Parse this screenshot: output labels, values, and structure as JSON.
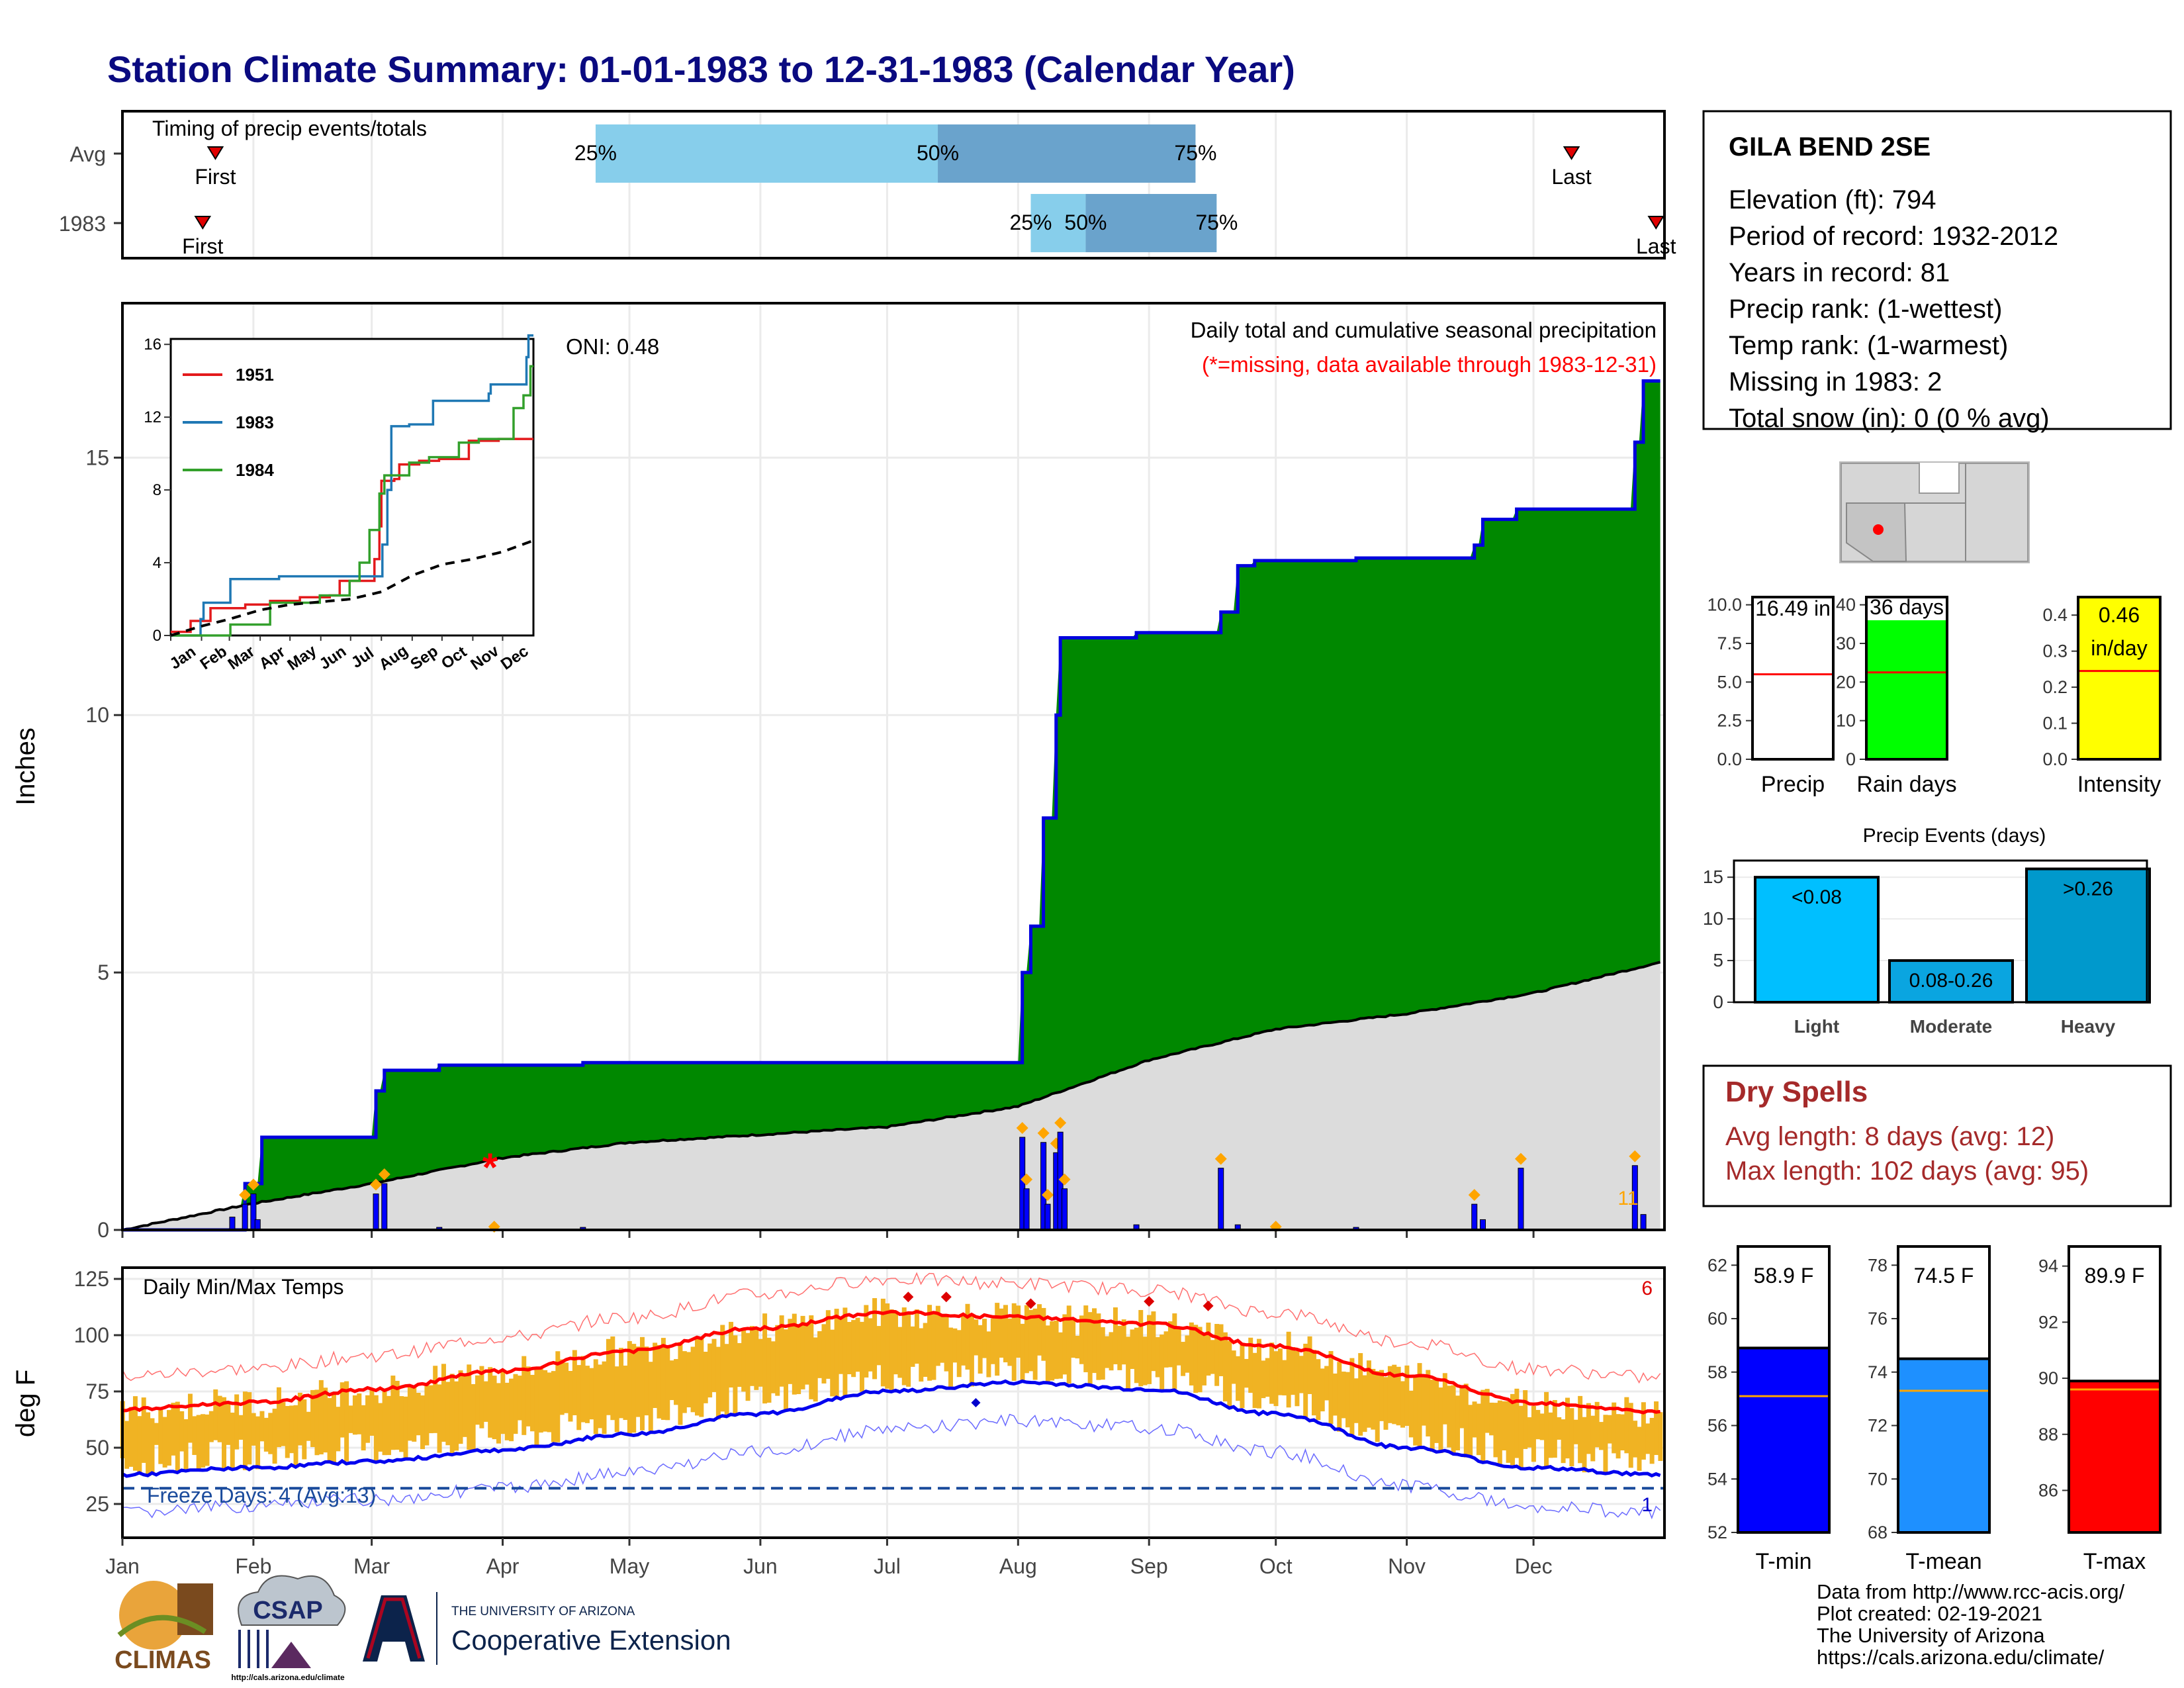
{
  "title": "Station Climate Summary: 01-01-1983 to 12-31-1983 (Calendar Year)",
  "timing": {
    "label": "Timing of precip events/totals",
    "rows": [
      {
        "name": "Avg",
        "first": "First",
        "last": "Last",
        "p25": "25%",
        "p50": "50%",
        "p75": "75%",
        "first_doy": 22,
        "p25_doy": 112,
        "p50_doy": 193,
        "p75_doy": 254,
        "last_doy": 343
      },
      {
        "name": "1983",
        "first": "First",
        "last": "Last",
        "p25": "25%",
        "p50": "50%",
        "p75": "75%",
        "first_doy": 19,
        "p25_doy": 215,
        "p50_doy": 228,
        "p75_doy": 259,
        "last_doy": 363
      }
    ]
  },
  "main": {
    "ylabel": "Inches",
    "yticks": [
      "0",
      "5",
      "10",
      "15"
    ],
    "oni": "ONI: 0.48",
    "subtitle": "Daily total and cumulative seasonal precipitation",
    "missing_note": "(*=missing, data available through 1983-12-31)",
    "extreme_count": "11"
  },
  "inset": {
    "yticks": [
      "0",
      "4",
      "8",
      "12",
      "16"
    ],
    "months": [
      "Jan",
      "Feb",
      "Mar",
      "Apr",
      "May",
      "Jun",
      "Jul",
      "Aug",
      "Sep",
      "Oct",
      "Nov",
      "Dec"
    ],
    "legend": [
      "1951",
      "1983",
      "1984"
    ]
  },
  "temps": {
    "ylabel": "deg F",
    "label": "Daily Min/Max Temps",
    "yticks": [
      "25",
      "50",
      "75",
      "100",
      "125"
    ],
    "freeze": "Freeze Days: 4 (Avg:13)",
    "hot_count": "6",
    "cold_count": "1"
  },
  "months": [
    "Jan",
    "Feb",
    "Mar",
    "Apr",
    "May",
    "Jun",
    "Jul",
    "Aug",
    "Sep",
    "Oct",
    "Nov",
    "Dec"
  ],
  "station": {
    "name": "GILA BEND 2SE",
    "lines": [
      "Elevation (ft): 794",
      "Period of record: 1932-2012",
      "Years in record: 81",
      "Precip rank:  (1-wettest)",
      "Temp rank:  (1-warmest)",
      "Missing in 1983: 2",
      "Total snow (in): 0 (0 % avg)"
    ]
  },
  "gauges": {
    "precip": {
      "label": "Precip",
      "value_text": "16.49 in",
      "value": 16.49,
      "avg": 5.5,
      "yticks": [
        "0.0",
        "2.5",
        "5.0",
        "7.5",
        "10.0"
      ],
      "ymax": 10.5,
      "color": "#ffffff"
    },
    "raindays": {
      "label": "Rain days",
      "value_text": "36 days",
      "value": 36,
      "avg": 22.5,
      "yticks": [
        "0",
        "10",
        "20",
        "30",
        "40"
      ],
      "ymax": 42,
      "color": "#00ff00"
    },
    "intensity": {
      "label": "Intensity",
      "value_text": "0.46",
      "value_text2": "in/day",
      "value": 0.46,
      "avg": 0.245,
      "yticks": [
        "0.0",
        "0.1",
        "0.2",
        "0.3",
        "0.4"
      ],
      "ymax": 0.45,
      "color": "#ffff00"
    }
  },
  "events": {
    "title": "Precip Events (days)",
    "yticks": [
      "0",
      "5",
      "10",
      "15"
    ],
    "categories": [
      "Light",
      "Moderate",
      "Heavy"
    ],
    "bar_labels": [
      "<0.08",
      "0.08-0.26",
      ">0.26"
    ],
    "values": [
      15,
      5,
      16
    ],
    "colors": [
      "#00bfff",
      "#0aa5e0",
      "#0099cc"
    ]
  },
  "dry": {
    "title": "Dry Spells",
    "avg": "Avg length: 8 days (avg: 12)",
    "max": "Max length: 102 days (avg: 95)"
  },
  "tgauges": [
    {
      "label": "T-min",
      "value_text": "58.9 F",
      "value": 58.9,
      "avg": 57.1,
      "min": 52,
      "max": 62.7,
      "ticks": [
        52,
        54,
        56,
        58,
        60,
        62
      ],
      "color": "#0000ff"
    },
    {
      "label": "T-mean",
      "value_text": "74.5 F",
      "value": 74.5,
      "avg": 73.3,
      "min": 68,
      "max": 78.7,
      "ticks": [
        68,
        70,
        72,
        74,
        76,
        78
      ],
      "color": "#1e90ff"
    },
    {
      "label": "T-max",
      "value_text": "89.9 F",
      "value": 89.9,
      "avg": 89.6,
      "min": 84.5,
      "max": 94.7,
      "ticks": [
        86,
        88,
        90,
        92,
        94
      ],
      "color": "#ff0000"
    }
  ],
  "logos": {
    "climas": "CLIMAS",
    "csap": "CSAP",
    "csap_url": "http://cals.arizona.edu/climate",
    "ua_small": "THE UNIVERSITY OF ARIZONA",
    "ua_big": "Cooperative Extension"
  },
  "footer": [
    "Data from http://www.rcc-acis.org/",
    "Plot created: 02-19-2021",
    "The University of Arizona",
    "https://cals.arizona.edu/climate/"
  ],
  "chart_data": [
    {
      "type": "bar",
      "title": "Timing of precip events/totals",
      "categories": [
        "Avg",
        "1983"
      ],
      "series": [
        {
          "name": "25%",
          "values": [
            112,
            215
          ]
        },
        {
          "name": "50%",
          "values": [
            193,
            228
          ]
        },
        {
          "name": "75%",
          "values": [
            254,
            259
          ]
        }
      ]
    },
    {
      "type": "area",
      "title": "Daily total and cumulative seasonal precipitation",
      "ylabel": "Inches",
      "ylim": [
        0,
        18
      ],
      "x": [
        "Jan",
        "Feb",
        "Mar",
        "Apr",
        "May",
        "Jun",
        "Jul",
        "Aug",
        "Sep",
        "Oct",
        "Nov",
        "Dec"
      ],
      "cumulative_1983_steps": [
        [
          29,
          0.9
        ],
        [
          33,
          1.8
        ],
        [
          60,
          2.7
        ],
        [
          62,
          3.1
        ],
        [
          75,
          3.2
        ],
        [
          109,
          3.25
        ],
        [
          213,
          5.0
        ],
        [
          215,
          5.9
        ],
        [
          218,
          8.0
        ],
        [
          221,
          10.0
        ],
        [
          222,
          11.5
        ],
        [
          240,
          11.6
        ],
        [
          260,
          12.0
        ],
        [
          264,
          12.9
        ],
        [
          268,
          13.0
        ],
        [
          292,
          13.05
        ],
        [
          320,
          13.3
        ],
        [
          322,
          13.8
        ],
        [
          330,
          14.0
        ],
        [
          358,
          15.3
        ],
        [
          360,
          16.49
        ]
      ],
      "average_cumulative": [
        [
          0,
          0.0
        ],
        [
          30,
          0.5
        ],
        [
          59,
          0.9
        ],
        [
          90,
          1.4
        ],
        [
          120,
          1.7
        ],
        [
          151,
          1.85
        ],
        [
          181,
          2.0
        ],
        [
          212,
          2.4
        ],
        [
          243,
          3.3
        ],
        [
          273,
          3.9
        ],
        [
          304,
          4.2
        ],
        [
          334,
          4.6
        ],
        [
          364,
          5.2
        ]
      ],
      "daily_bars": [
        [
          26,
          0.25
        ],
        [
          29,
          0.5
        ],
        [
          31,
          0.7
        ],
        [
          32,
          0.2
        ],
        [
          60,
          0.7
        ],
        [
          62,
          0.9
        ],
        [
          75,
          0.05
        ],
        [
          109,
          0.05
        ],
        [
          213,
          1.8
        ],
        [
          214,
          0.8
        ],
        [
          218,
          1.7
        ],
        [
          219,
          0.5
        ],
        [
          221,
          1.5
        ],
        [
          222,
          1.9
        ],
        [
          223,
          0.8
        ],
        [
          240,
          0.1
        ],
        [
          260,
          1.2
        ],
        [
          264,
          0.1
        ],
        [
          292,
          0.05
        ],
        [
          320,
          0.5
        ],
        [
          322,
          0.2
        ],
        [
          331,
          1.2
        ],
        [
          358,
          1.25
        ],
        [
          360,
          0.3
        ]
      ]
    },
    {
      "type": "line",
      "title": "Daily Min/Max Temps",
      "ylabel": "deg F",
      "ylim": [
        10,
        130
      ],
      "series": [
        {
          "name": "avg max",
          "x": [
            0,
            30,
            60,
            90,
            120,
            150,
            181,
            212,
            243,
            273,
            304,
            334,
            364
          ],
          "values": [
            67,
            70,
            76,
            84,
            93,
            103,
            110,
            108,
            105,
            95,
            82,
            70,
            66
          ]
        },
        {
          "name": "avg min",
          "x": [
            0,
            30,
            60,
            90,
            120,
            150,
            181,
            212,
            243,
            273,
            304,
            334,
            364
          ],
          "values": [
            38,
            41,
            44,
            49,
            56,
            65,
            75,
            79,
            76,
            65,
            50,
            41,
            38
          ]
        }
      ]
    },
    {
      "type": "bar",
      "title": "Precip Events (days)",
      "categories": [
        "Light",
        "Moderate",
        "Heavy"
      ],
      "values": [
        15,
        5,
        16
      ]
    }
  ]
}
